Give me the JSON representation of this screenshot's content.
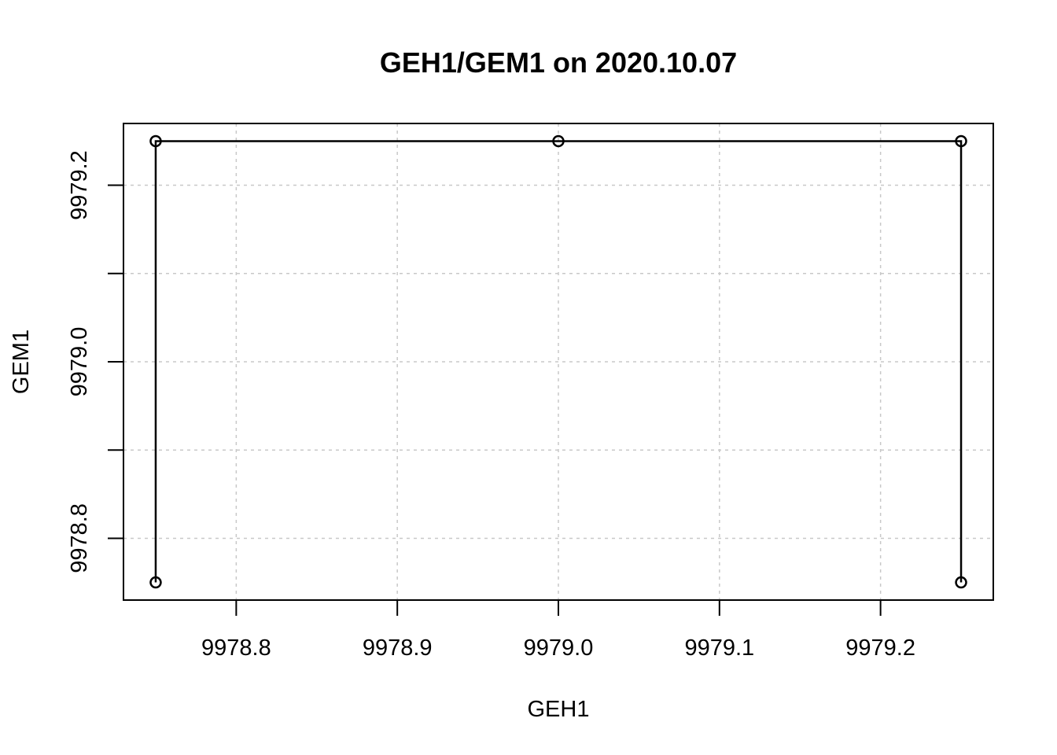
{
  "chart_data": {
    "type": "line",
    "title": "GEH1/GEM1 on 2020.10.07",
    "xlabel": "GEH1",
    "ylabel": "GEM1",
    "xlim": [
      9978.75,
      9979.25
    ],
    "ylim": [
      9978.75,
      9979.25
    ],
    "grid": true,
    "x_ticks": [
      9978.8,
      9978.9,
      9979.0,
      9979.1,
      9979.2
    ],
    "x_tick_labels": [
      "9978.8",
      "9978.9",
      "9979.0",
      "9979.1",
      "9979.2"
    ],
    "y_ticks": [
      9978.8,
      9978.9,
      9979.0,
      9979.1,
      9979.2
    ],
    "y_tick_labels": [
      "9978.8",
      "",
      "9979.0",
      "",
      "9979.2"
    ],
    "series": [
      {
        "x": [
          9978.75,
          9978.75,
          9979.0,
          9979.25,
          9979.25
        ],
        "y": [
          9978.75,
          9979.25,
          9979.25,
          9979.25,
          9978.75
        ],
        "marker": "open-circle",
        "color": "#000000"
      }
    ]
  }
}
